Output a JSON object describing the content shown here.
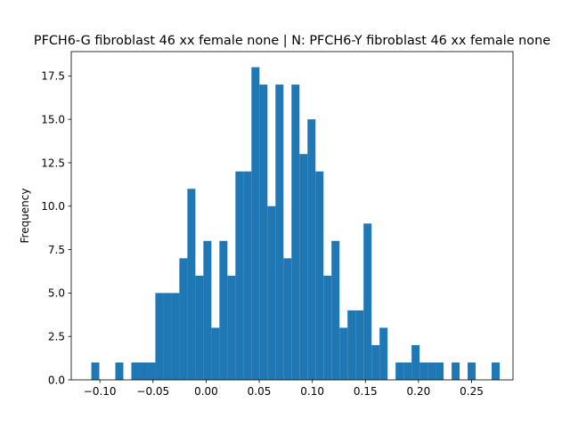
{
  "chart_data": {
    "type": "bar",
    "title": "PFCH6-G fibroblast 46 xx female none | N: PFCH6-Y fibroblast 46 xx female none",
    "xlabel": "",
    "ylabel": "Frequency",
    "xlim": [
      -0.127,
      0.289
    ],
    "ylim": [
      0,
      18.9
    ],
    "bar_color": "#1f77b4",
    "bin_width": 0.00754,
    "bin_start": -0.1081,
    "counts": [
      1,
      0,
      0,
      1,
      0,
      1,
      1,
      1,
      5,
      5,
      5,
      7,
      11,
      6,
      8,
      3,
      8,
      6,
      12,
      12,
      18,
      17,
      10,
      17,
      7,
      17,
      13,
      15,
      12,
      6,
      8,
      3,
      4,
      4,
      9,
      2,
      3,
      0,
      1,
      1,
      2,
      1,
      1,
      1,
      0,
      1,
      0,
      1,
      0,
      0,
      1
    ],
    "xticks": [
      -0.1,
      -0.05,
      0.0,
      0.05,
      0.1,
      0.15,
      0.2,
      0.25
    ],
    "xtick_labels": [
      "−0.10",
      "−0.05",
      "0.00",
      "0.05",
      "0.10",
      "0.15",
      "0.20",
      "0.25"
    ],
    "yticks": [
      0.0,
      2.5,
      5.0,
      7.5,
      10.0,
      12.5,
      15.0,
      17.5
    ],
    "ytick_labels": [
      "0.0",
      "2.5",
      "5.0",
      "7.5",
      "10.0",
      "12.5",
      "15.0",
      "17.5"
    ],
    "grid": false,
    "legend": "none"
  }
}
